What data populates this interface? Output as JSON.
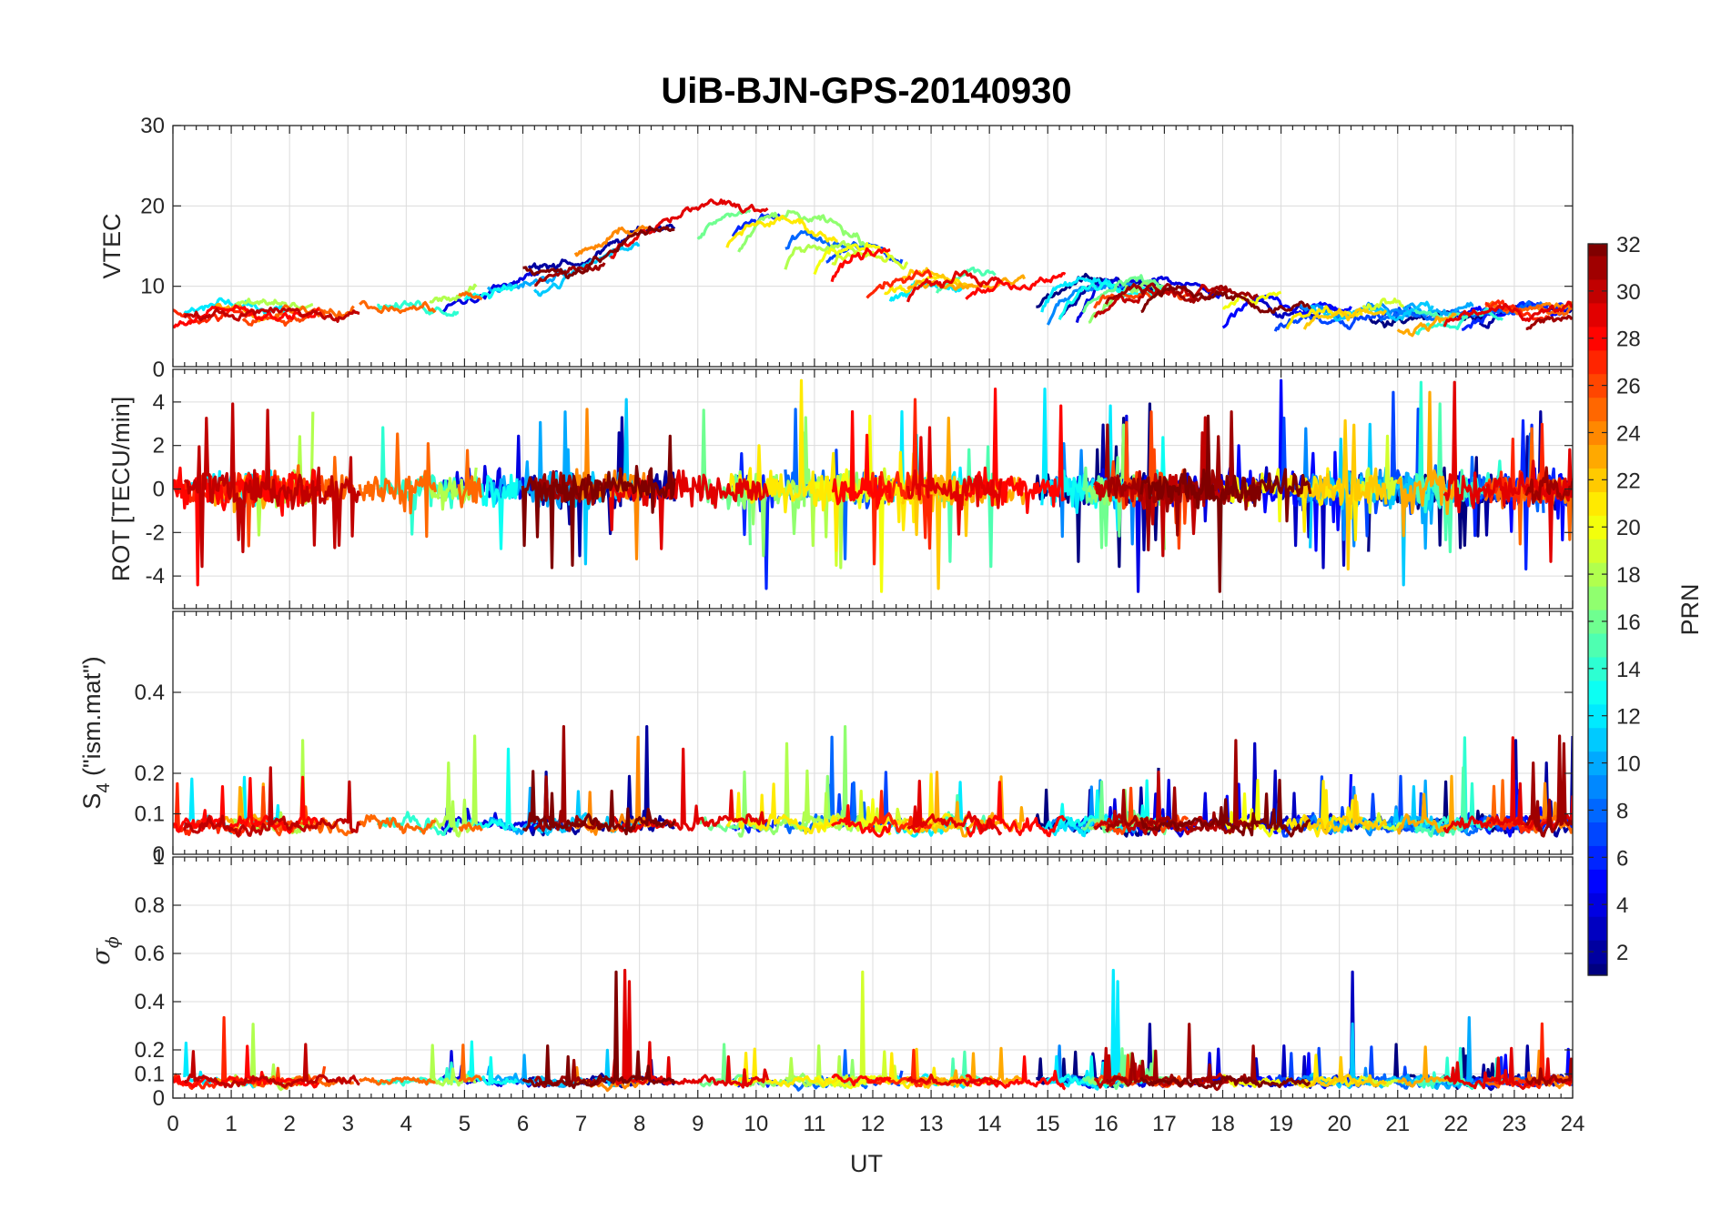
{
  "chart_data": {
    "type": "line",
    "title": "UiB-BJN-GPS-20140930",
    "xlabel": "UT",
    "xlim": [
      0,
      24
    ],
    "x_ticks": [
      0,
      1,
      2,
      3,
      4,
      5,
      6,
      7,
      8,
      9,
      10,
      11,
      12,
      13,
      14,
      15,
      16,
      17,
      18,
      19,
      20,
      21,
      22,
      23,
      24
    ],
    "grid": true,
    "panels": [
      {
        "ylabel": "VTEC",
        "ylim": [
          0,
          30
        ],
        "y_ticks": [
          10,
          20,
          30
        ],
        "y_tick_labels": [
          "10",
          "20",
          "30"
        ],
        "typical_range": [
          4,
          24
        ]
      },
      {
        "ylabel": "ROT [TECU/min]",
        "ylim": [
          -5.5,
          5.5
        ],
        "y_ticks": [
          -4,
          -2,
          0,
          2,
          4
        ],
        "y_tick_labels": [
          "-4",
          "-2",
          "0",
          "2",
          "4"
        ],
        "top_label": "0",
        "typical_range": [
          -4.5,
          5.5
        ]
      },
      {
        "ylabel_main": "S",
        "ylabel_sub": "4",
        "ylabel_rest": " (\"ism.mat\")",
        "ylim": [
          0,
          0.6
        ],
        "y_ticks": [
          0.1,
          0.2,
          0.4
        ],
        "y_tick_labels": [
          "0.1",
          "0.2",
          "0.4"
        ],
        "bottom_label": "0",
        "typical_range": [
          0.05,
          0.33
        ]
      },
      {
        "ylabel_sym": "σ",
        "ylabel_sub": "ϕ",
        "ylim": [
          0,
          1
        ],
        "y_ticks": [
          0,
          0.1,
          0.2,
          0.4,
          0.6,
          0.8
        ],
        "y_tick_labels": [
          "0",
          "0.1",
          "0.2",
          "0.4",
          "0.6",
          "0.8"
        ],
        "top_label": "1",
        "typical_range": [
          0.03,
          0.77
        ]
      }
    ],
    "colorbar": {
      "label": "PRN",
      "ticks": [
        2,
        4,
        6,
        8,
        10,
        12,
        14,
        16,
        18,
        20,
        22,
        24,
        26,
        28,
        30,
        32
      ],
      "range": [
        1,
        32
      ],
      "colormap": "jet"
    },
    "series": [
      {
        "prn": 1,
        "segments": [
          [
            14.8,
            16.9
          ],
          [
            20.5,
            22.8
          ]
        ]
      },
      {
        "prn": 2,
        "segments": [
          [
            6.1,
            8.6
          ],
          [
            15.2,
            17.0
          ],
          [
            22.4,
            24.0
          ]
        ]
      },
      {
        "prn": 3,
        "segments": [
          [
            18.5,
            20.4
          ]
        ]
      },
      {
        "prn": 4,
        "segments": [
          [
            4.6,
            6.3
          ],
          [
            15.5,
            18.0
          ]
        ]
      },
      {
        "prn": 5,
        "segments": [
          [
            18.0,
            20.2
          ],
          [
            21.9,
            24.0
          ]
        ]
      },
      {
        "prn": 6,
        "segments": [
          [
            9.6,
            10.4
          ],
          [
            22.1,
            24.0
          ]
        ]
      },
      {
        "prn": 7,
        "segments": [
          [
            11.2,
            12.5
          ],
          [
            18.9,
            21.4
          ]
        ]
      },
      {
        "prn": 8,
        "segments": [
          [
            10.5,
            11.9
          ],
          [
            20.7,
            23.5
          ]
        ]
      },
      {
        "prn": 9,
        "segments": [
          [
            15.0,
            16.5
          ],
          [
            19.3,
            21.2
          ]
        ]
      },
      {
        "prn": 10,
        "segments": [
          [
            5.4,
            6.8
          ],
          [
            21.1,
            22.3
          ]
        ]
      },
      {
        "prn": 11,
        "segments": [
          [
            6.2,
            8.0
          ],
          [
            19.5,
            21.6
          ]
        ]
      },
      {
        "prn": 12,
        "segments": [
          [
            0.2,
            1.9
          ],
          [
            12.3,
            13.6
          ],
          [
            14.9,
            16.4
          ]
        ]
      },
      {
        "prn": 13,
        "segments": [
          [
            5.0,
            5.9
          ],
          [
            15.2,
            17.0
          ]
        ]
      },
      {
        "prn": 14,
        "segments": [
          [
            3.5,
            4.9
          ],
          [
            21.3,
            22.8
          ]
        ]
      },
      {
        "prn": 15,
        "segments": [
          [
            13.1,
            14.1
          ],
          [
            21.3,
            22.2
          ]
        ]
      },
      {
        "prn": 16,
        "segments": [
          [
            9.0,
            9.9
          ],
          [
            15.6,
            17.1
          ]
        ]
      },
      {
        "prn": 17,
        "segments": [
          [
            9.7,
            11.9
          ],
          [
            15.7,
            17.0
          ]
        ]
      },
      {
        "prn": 18,
        "segments": [
          [
            1.0,
            2.4
          ],
          [
            4.4,
            5.2
          ],
          [
            10.5,
            11.7
          ]
        ]
      },
      {
        "prn": 19,
        "segments": [
          [
            11.3,
            12.6
          ],
          [
            20.4,
            21.1
          ]
        ]
      },
      {
        "prn": 20,
        "segments": [
          [
            11.0,
            12.3
          ],
          [
            18.0,
            19.0
          ]
        ]
      },
      {
        "prn": 21,
        "segments": [
          [
            9.5,
            11.4
          ],
          [
            12.2,
            13.5
          ],
          [
            19.1,
            20.4
          ]
        ]
      },
      {
        "prn": 22,
        "segments": [
          [
            12.5,
            13.7
          ],
          [
            19.4,
            20.8
          ]
        ]
      },
      {
        "prn": 23,
        "segments": [
          [
            0.7,
            1.6
          ],
          [
            12.6,
            14.6
          ],
          [
            21.0,
            22.0
          ]
        ]
      },
      {
        "prn": 24,
        "segments": [
          [
            6.9,
            8.2
          ],
          [
            23.4,
            24.0
          ]
        ]
      },
      {
        "prn": 25,
        "segments": [
          [
            1.7,
            3.1
          ],
          [
            3.2,
            4.5
          ],
          [
            4.9,
            5.3
          ],
          [
            22.5,
            24.0
          ]
        ]
      },
      {
        "prn": 26,
        "segments": [
          [
            1.2,
            2.6
          ],
          [
            15.8,
            17.4
          ]
        ]
      },
      {
        "prn": 27,
        "segments": [
          [
            0.0,
            1.4
          ],
          [
            11.9,
            13.0
          ],
          [
            22.5,
            23.6
          ]
        ]
      },
      {
        "prn": 28,
        "segments": [
          [
            0.0,
            2.5
          ],
          [
            11.3,
            12.3
          ],
          [
            13.6,
            15.3
          ]
        ]
      },
      {
        "prn": 29,
        "segments": [
          [
            7.5,
            10.2
          ],
          [
            12.6,
            14.2
          ],
          [
            21.8,
            24.0
          ]
        ]
      },
      {
        "prn": 30,
        "segments": [
          [
            0.2,
            3.2
          ],
          [
            15.8,
            18.1
          ]
        ]
      },
      {
        "prn": 31,
        "segments": [
          [
            6.2,
            7.4
          ],
          [
            16.0,
            18.6
          ],
          [
            23.2,
            24.0
          ]
        ]
      },
      {
        "prn": 32,
        "segments": [
          [
            6.0,
            8.6
          ],
          [
            16.6,
            19.5
          ]
        ]
      }
    ]
  }
}
